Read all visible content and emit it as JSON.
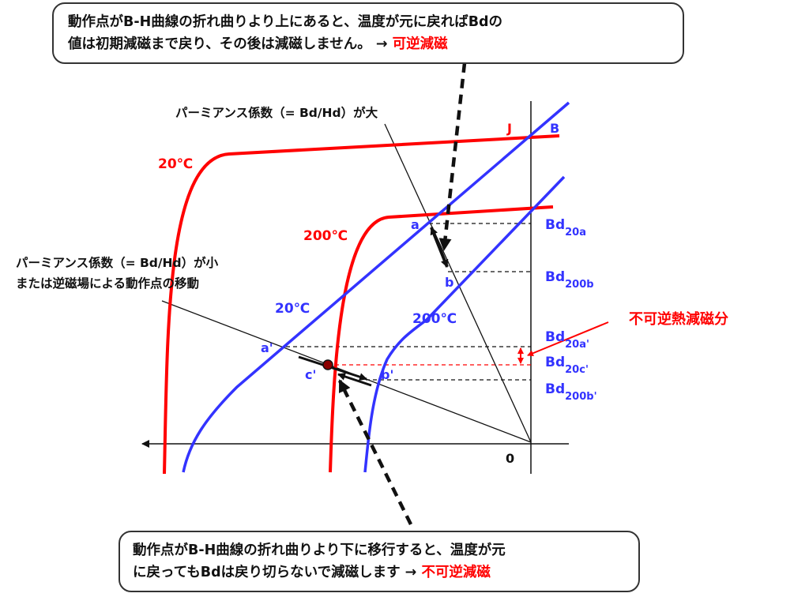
{
  "callout_top": {
    "line1": "動作点がB-H曲線の折れ曲りより上にあると、温度が元に戻ればBdの",
    "line2": "値は初期減磁まで戻り、その後は減磁しません。 → ",
    "highlight": "可逆減磁"
  },
  "callout_bottom": {
    "line1": "動作点がB-H曲線の折れ曲りより下に移行すると、温度が元",
    "line2": "に戻ってもBdは戻り切らないで減磁します → ",
    "highlight": "不可逆減磁"
  },
  "annotations": {
    "permeance_large": "パーミアンス係数（= Bd/Hd）が大",
    "permeance_small_line1": "パーミアンス係数（= Bd/Hd）が小",
    "permeance_small_line2": "または逆磁場による動作点の移動",
    "irreversible_loss": "不可逆熱減磁分"
  },
  "curve_labels": {
    "j_20": "20℃",
    "j_200": "200℃",
    "b_20": "20℃",
    "b_200": "200℃",
    "J": "J",
    "B": "B",
    "origin": "0"
  },
  "points": {
    "a": "a",
    "b": "b",
    "a_prime": "a'",
    "b_prime": "b'",
    "c_prime": "c'"
  },
  "bd_levels": {
    "bd20a": {
      "main": "Bd",
      "sub": "20a"
    },
    "bd200b": {
      "main": "Bd",
      "sub": "200b"
    },
    "bd20a_prime": {
      "main": "Bd",
      "sub": "20a'"
    },
    "bd20c_prime": {
      "main": "Bd",
      "sub": "20c'"
    },
    "bd200b_prime": {
      "main": "Bd",
      "sub": "200b'"
    }
  },
  "colors": {
    "j_curve": "#ff0000",
    "b_curve": "#3333ff",
    "bd_label": "#3333ff",
    "highlight": "#ff0000",
    "axis": "#111111"
  }
}
